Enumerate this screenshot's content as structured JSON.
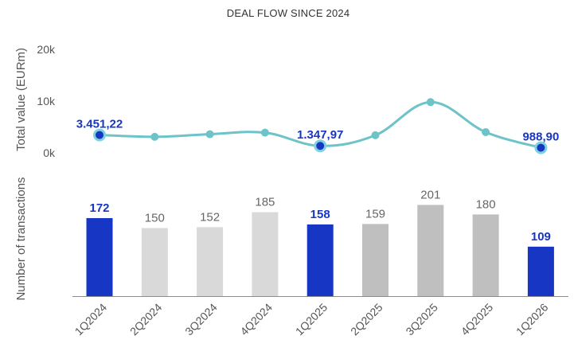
{
  "chart_data": {
    "type": "bar",
    "title": "DEAL FLOW SINCE 2024",
    "categories": [
      "1Q2024",
      "2Q2024",
      "3Q2024",
      "4Q2024",
      "1Q2025",
      "2Q2025",
      "3Q2025",
      "4Q2025",
      "1Q2026"
    ],
    "series": [
      {
        "name": "Total value (EURm)",
        "type": "line",
        "values": [
          3451.22,
          3100,
          3600,
          3900,
          1347.97,
          3400,
          9800,
          4000,
          988.9
        ],
        "labels": [
          "3.451,22",
          "",
          "",
          "",
          "1.347,97",
          "",
          "",
          "",
          "988,90"
        ],
        "highlighted": [
          true,
          false,
          false,
          false,
          true,
          false,
          false,
          false,
          true
        ]
      },
      {
        "name": "Number of transactions",
        "type": "bar",
        "values": [
          172,
          150,
          152,
          185,
          158,
          159,
          201,
          180,
          109
        ],
        "highlighted": [
          true,
          false,
          false,
          false,
          true,
          false,
          false,
          false,
          true
        ],
        "shades": [
          "highlight",
          "light",
          "light",
          "light",
          "highlight",
          "dark",
          "dark",
          "dark",
          "highlight"
        ]
      }
    ],
    "line_axis": {
      "ylabel": "Total value (EURm)",
      "ticks": [
        "20k",
        "10k",
        "0k"
      ],
      "tick_values": [
        20000,
        10000,
        0
      ],
      "ylim": [
        0,
        20000
      ]
    },
    "bar_axis": {
      "ylabel": "Number of transactions",
      "ylim": [
        0,
        240
      ]
    },
    "colors": {
      "line": "#6cc3c8",
      "highlight": "#1736c4",
      "highlight_marker_ring": "#7fd0e0",
      "bar_light": "#d9d9d9",
      "bar_dark": "#bfbfbf",
      "axis_line": "#8c8c8c"
    }
  }
}
